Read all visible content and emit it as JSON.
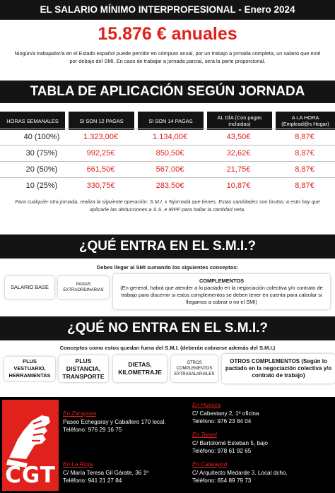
{
  "header": {
    "title": "EL SALARIO MÍNIMO INTERPROFESIONAL - Enero 2024",
    "amount": "15.876 € anuales",
    "intro_line1": "Ningún/a trabajador/a en el Estado español puede percibir en cómputo anual, por un trabajo a jornada completa, un salario que esté",
    "intro_line2": "por debajo del SMI. En caso de trabajar a jornada parcial, será la parte proporcional."
  },
  "tabla": {
    "banner": "TABLA DE APLICACIÓN SEGÚN JORNADA",
    "headers": [
      "HORAS SEMANALES",
      "SI SON 12 PAGAS",
      "SI SON 14 PAGAS",
      "AL DÍA (Con pagas incluidas)",
      "A LA HORA (Emplead@s Hogar)"
    ],
    "rows": [
      [
        "40 (100%)",
        "1.323,00€",
        "1.134,00€",
        "43,50€",
        "8,87€"
      ],
      [
        "30 (75%)",
        "992,25€",
        "850,50€",
        "32,62€",
        "8,87€"
      ],
      [
        "20 (50%)",
        "661,50€",
        "567,00€",
        "21,75€",
        "8,87€"
      ],
      [
        "10 (25%)",
        "330,75€",
        "283,50€",
        "10,87€",
        "8,87€"
      ]
    ],
    "note_line1": "Para cualquier otra jornada, realiza la siguiente operación: S.M.I. x %jornada que tienes. Estas cantidades son brutas: a esto hay que",
    "note_line2": "aplicarle las deducciones a S.S. e IRPF para hallar la cantidad neta."
  },
  "entra": {
    "banner": "¿QUÉ ENTRA EN EL S.M.I.?",
    "subtitle": "Debes llegar al SMI sumando los siguientes conceptos:",
    "salario_base": "SALARIO BASE",
    "pagas": "PAGAS EXTRAORDINARIAS",
    "complementos_title": "COMPLEMENTOS",
    "complementos_text": "(En general, habrá que atender a lo pactado en la negociación colectiva y/o contrato de trabajo para discernir si estos complementos se deben tener en cuenta para calcular si llegamos a cobrar o no el SMI)"
  },
  "noentra": {
    "banner": "¿QUÉ NO ENTRA EN EL S.M.I.?",
    "subtitle": "Conceptos como estos quedan fuera del S.M.I. (deberán cobrarse además del S.M.I.)",
    "items": [
      "PLUS VESTUARIO, HERRAMIENTAS",
      "PLUS DISTANCIA, TRANSPORTE",
      "DIETAS, KILOMETRAJE",
      "OTROS COMPLEMENTOS EXTRASALARIALES",
      "OTROS COMPLEMENTOS (Según lo pactado en la negociación colectiva y/o contrato de trabajo)"
    ]
  },
  "footer": {
    "logo": "CGT",
    "offices": [
      {
        "city": "En Zaragoza",
        "address": "Paseo Echegaray y Caballero 170 local.",
        "phone": "Teléfono: 976 29 16 75"
      },
      {
        "city": "En Huesca",
        "address": "C/ Cabestany 2, 1º oficina",
        "phone": "Teléfono:  976 23 84 04"
      },
      {
        "city": "En Teruel",
        "address": "C/ Bartolomé Esteban 5, bajo",
        "phone": "Teléfono: 978 61 92 65"
      },
      {
        "city": "En La Rioja",
        "address": "C/ María Teresa Gil Gárate, 36 1º",
        "phone": "Teléfono:  941 21 27 84"
      },
      {
        "city": "En Calatayud",
        "address": "C/ Arquitecto Medarde 3. Local dcho.",
        "phone": "Teléfono: 654 89 79 73"
      }
    ]
  },
  "colors": {
    "accent_red": "#e0211c",
    "banner_black": "#141414"
  }
}
